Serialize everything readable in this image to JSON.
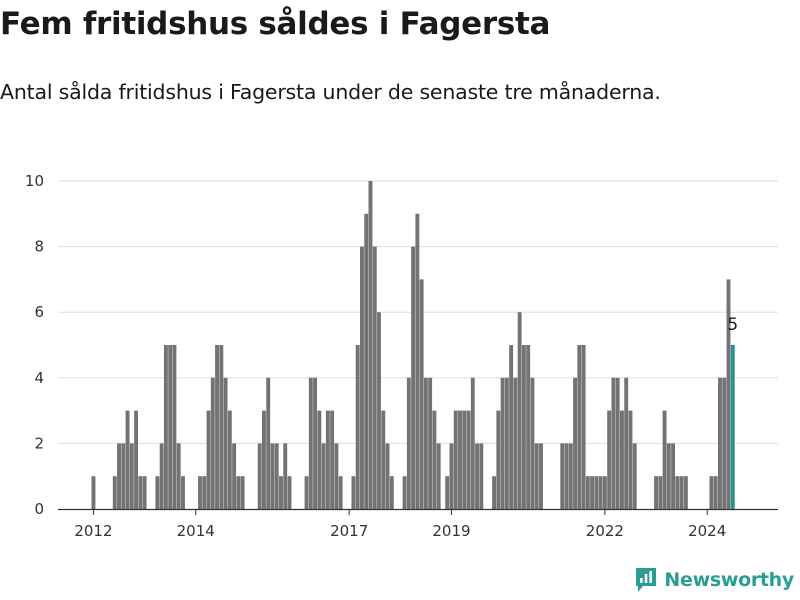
{
  "header": {
    "title": "Fem fritidshus såldes i Fagersta",
    "subtitle": "Antal sålda fritidshus i Fagersta under de senaste tre månaderna."
  },
  "brand": {
    "name": "Newsworthy",
    "icon": "newsworthy-logo-icon"
  },
  "colors": {
    "bar": "#737376",
    "highlight": "#1f958c",
    "grid": "#dddddd",
    "brand": "#2a9d94"
  },
  "chart_data": {
    "type": "bar",
    "title": "Fem fritidshus såldes i Fagersta",
    "subtitle": "Antal sålda fritidshus i Fagersta under de senaste tre månaderna.",
    "xlabel": "",
    "ylabel": "",
    "ylim": [
      0,
      10
    ],
    "yticks": [
      0,
      2,
      4,
      6,
      8,
      10
    ],
    "xticks": [
      "2012",
      "2014",
      "2017",
      "2019",
      "2022",
      "2024"
    ],
    "start": "2012-01",
    "values": [
      1,
      0,
      0,
      0,
      0,
      1,
      2,
      2,
      3,
      2,
      3,
      1,
      1,
      0,
      0,
      1,
      2,
      5,
      5,
      5,
      2,
      1,
      0,
      0,
      0,
      1,
      1,
      3,
      4,
      5,
      5,
      4,
      3,
      2,
      1,
      1,
      0,
      0,
      0,
      2,
      3,
      4,
      2,
      2,
      1,
      2,
      1,
      0,
      0,
      0,
      1,
      4,
      4,
      3,
      2,
      3,
      3,
      2,
      1,
      0,
      0,
      1,
      5,
      8,
      9,
      10,
      8,
      6,
      3,
      2,
      1,
      0,
      0,
      1,
      4,
      8,
      9,
      7,
      4,
      4,
      3,
      2,
      0,
      1,
      2,
      3,
      3,
      3,
      3,
      4,
      2,
      2,
      0,
      0,
      1,
      3,
      4,
      4,
      5,
      4,
      6,
      5,
      5,
      4,
      2,
      2,
      0,
      0,
      0,
      0,
      2,
      2,
      2,
      4,
      5,
      5,
      1,
      1,
      1,
      1,
      1,
      3,
      4,
      4,
      3,
      4,
      3,
      2,
      0,
      0,
      0,
      0,
      1,
      1,
      3,
      2,
      2,
      1,
      1,
      1,
      0,
      0,
      0,
      0,
      0,
      1,
      1,
      4,
      4,
      7,
      5
    ],
    "highlight": {
      "label": "5",
      "value": 5,
      "period": "latest"
    }
  }
}
